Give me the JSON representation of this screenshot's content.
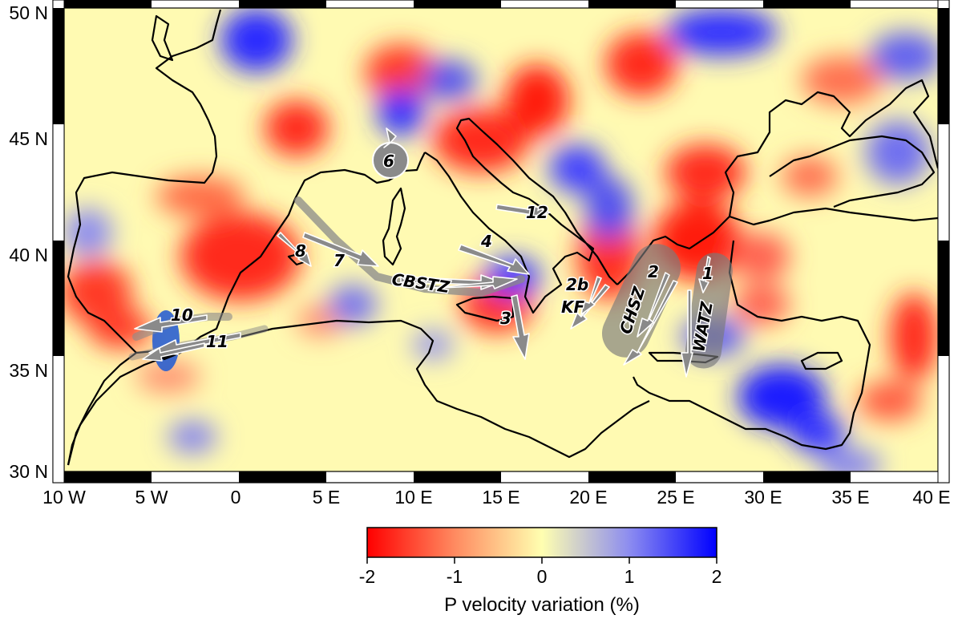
{
  "map": {
    "lat_labels": [
      "50 N",
      "45 N",
      "40 N",
      "35 N",
      "30 N"
    ],
    "lon_labels": [
      "10 W",
      "5 W",
      "0",
      "5 E",
      "10 E",
      "15 E",
      "20 E",
      "25 E",
      "30 E",
      "35 E",
      "40 E"
    ],
    "extent": {
      "lon": [
        -10,
        40
      ],
      "lat": [
        30,
        50
      ]
    },
    "frame_style": "alternating black/white border ticks",
    "coastline_color": "#000000",
    "arrow_color": "#7a7a7a",
    "annotations": [
      "1",
      "2",
      "2b",
      "3",
      "4",
      "6",
      "7",
      "8",
      "10",
      "11",
      "12",
      "CBSTZ",
      "KF",
      "CHSZ",
      "WATZ"
    ]
  },
  "colorbar": {
    "ticks": [
      "-2",
      "-1",
      "0",
      "1",
      "2"
    ],
    "title": "P velocity variation (%)",
    "range": [
      -2,
      2
    ],
    "colors": {
      "low": "#ff0000",
      "mid": "#ffffb0",
      "high": "#0000ff"
    }
  }
}
